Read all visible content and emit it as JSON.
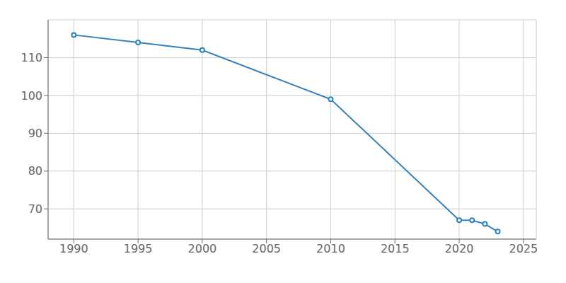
{
  "chart_data": {
    "type": "line",
    "x": [
      1990,
      1995,
      2000,
      2010,
      2020,
      2021,
      2022,
      2023
    ],
    "values": [
      116,
      114,
      112,
      99,
      67,
      67,
      66,
      64
    ],
    "xlim": [
      1988,
      2026
    ],
    "ylim": [
      62,
      120
    ],
    "xticks": [
      1990,
      1995,
      2000,
      2005,
      2010,
      2015,
      2020,
      2025
    ],
    "yticks": [
      70,
      80,
      90,
      100,
      110
    ],
    "grid": true,
    "marker": "circle"
  }
}
